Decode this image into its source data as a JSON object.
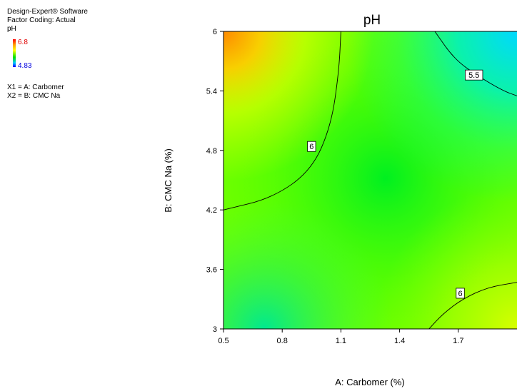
{
  "info": {
    "software": "Design-Expert® Software",
    "coding": "Factor Coding: Actual",
    "response": "pH",
    "legend_high": "6.8",
    "legend_low": "4.83",
    "x1": "X1 = A: Carbomer",
    "x2": "X2 = B: CMC Na"
  },
  "chart_data": {
    "type": "heatmap",
    "subtype": "contour",
    "title": "pH",
    "xlabel": "A: Carbomer (%)",
    "ylabel": "B: CMC Na (%)",
    "xlim": [
      0.5,
      2.0
    ],
    "ylim": [
      3,
      6
    ],
    "xticks": [
      "0.5",
      "0.8",
      "1.1",
      "1.4",
      "1.7"
    ],
    "yticks": [
      "3",
      "3.6",
      "4.2",
      "4.8",
      "5.4",
      "6"
    ],
    "color_range": [
      4.83,
      6.8
    ],
    "contours": [
      {
        "level": "6",
        "points": [
          [
            0.5,
            4.2
          ],
          [
            0.75,
            4.32
          ],
          [
            0.95,
            4.6
          ],
          [
            1.05,
            5.05
          ],
          [
            1.09,
            5.6
          ],
          [
            1.1,
            6.0
          ]
        ]
      },
      {
        "level": "5.5",
        "points": [
          [
            1.58,
            6.0
          ],
          [
            1.68,
            5.72
          ],
          [
            1.8,
            5.55
          ],
          [
            1.93,
            5.4
          ],
          [
            2.0,
            5.35
          ]
        ]
      },
      {
        "level": "6",
        "points": [
          [
            1.55,
            3.0
          ],
          [
            1.62,
            3.15
          ],
          [
            1.72,
            3.3
          ],
          [
            1.85,
            3.42
          ],
          [
            2.0,
            3.47
          ]
        ]
      }
    ],
    "contour_label_positions": [
      [
        0.95,
        4.84
      ],
      [
        1.78,
        5.56
      ],
      [
        1.71,
        3.36
      ]
    ]
  }
}
